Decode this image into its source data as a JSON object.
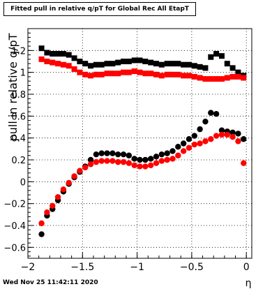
{
  "chart_data": {
    "type": "scatter",
    "title": "Fitted pull in relative q/pT for Global Rec All EtapT",
    "xlabel": "η",
    "ylabel": "pull in relative q/pT",
    "xlim": [
      -2.0,
      0.05
    ],
    "ylim": [
      -0.7,
      1.4
    ],
    "grid": true,
    "x_ticks": [
      -2,
      -1.5,
      -1,
      -0.5,
      0
    ],
    "x_tick_labels": [
      "−2",
      "−1.5",
      "−1",
      "−0.5",
      "0"
    ],
    "y_ticks": [
      -0.6,
      -0.4,
      -0.2,
      0,
      0.2,
      0.4,
      0.6,
      0.8,
      1,
      1.2
    ],
    "y_tick_labels": [
      "−0.6",
      "−0.4",
      "−0.2",
      "0",
      "0.2",
      "0.4",
      "0.6",
      "0.8",
      "1",
      "1.2"
    ],
    "x": [
      -1.875,
      -1.825,
      -1.775,
      -1.725,
      -1.675,
      -1.625,
      -1.575,
      -1.525,
      -1.475,
      -1.425,
      -1.375,
      -1.325,
      -1.275,
      -1.225,
      -1.175,
      -1.125,
      -1.075,
      -1.025,
      -0.975,
      -0.925,
      -0.875,
      -0.825,
      -0.775,
      -0.725,
      -0.675,
      -0.625,
      -0.575,
      -0.525,
      -0.475,
      -0.425,
      -0.375,
      -0.325,
      -0.275,
      -0.225,
      -0.175,
      -0.125,
      -0.075,
      -0.025
    ],
    "series": [
      {
        "marker": "square",
        "color": "#000000",
        "values": [
          1.22,
          1.18,
          1.17,
          1.17,
          1.17,
          1.16,
          1.13,
          1.1,
          1.08,
          1.06,
          1.07,
          1.07,
          1.08,
          1.08,
          1.09,
          1.1,
          1.1,
          1.11,
          1.11,
          1.1,
          1.09,
          1.08,
          1.07,
          1.08,
          1.08,
          1.08,
          1.07,
          1.07,
          1.06,
          1.05,
          1.04,
          1.14,
          1.17,
          1.15,
          1.08,
          1.04,
          1.0,
          0.97
        ]
      },
      {
        "marker": "square",
        "color": "#ff0000",
        "values": [
          1.12,
          1.1,
          1.09,
          1.08,
          1.07,
          1.06,
          1.03,
          1.0,
          0.98,
          0.97,
          0.98,
          0.98,
          0.99,
          0.99,
          0.99,
          1.0,
          1.0,
          1.01,
          1.0,
          0.99,
          0.99,
          0.98,
          0.97,
          0.98,
          0.98,
          0.98,
          0.97,
          0.97,
          0.96,
          0.95,
          0.94,
          0.94,
          0.94,
          0.94,
          0.95,
          0.96,
          0.96,
          0.95
        ]
      },
      {
        "marker": "circle",
        "color": "#000000",
        "values": [
          -0.48,
          -0.31,
          -0.25,
          -0.17,
          -0.09,
          -0.02,
          0.04,
          0.09,
          0.14,
          0.2,
          0.25,
          0.26,
          0.26,
          0.26,
          0.25,
          0.25,
          0.24,
          0.21,
          0.2,
          0.2,
          0.21,
          0.23,
          0.25,
          0.26,
          0.28,
          0.32,
          0.35,
          0.39,
          0.42,
          0.48,
          0.55,
          0.63,
          0.62,
          0.47,
          0.46,
          0.45,
          0.44,
          0.39
        ]
      },
      {
        "marker": "circle",
        "color": "#ff0000",
        "values": [
          -0.38,
          -0.28,
          -0.22,
          -0.14,
          -0.07,
          -0.01,
          0.05,
          0.1,
          0.13,
          0.16,
          0.18,
          0.19,
          0.19,
          0.19,
          0.18,
          0.18,
          0.17,
          0.15,
          0.14,
          0.14,
          0.15,
          0.17,
          0.19,
          0.2,
          0.21,
          0.24,
          0.28,
          0.31,
          0.34,
          0.35,
          0.37,
          0.39,
          0.42,
          0.43,
          0.43,
          0.41,
          0.37,
          0.17
        ]
      }
    ]
  },
  "footer": {
    "timestamp": "Wed Nov 25 11:42:11 2020"
  }
}
